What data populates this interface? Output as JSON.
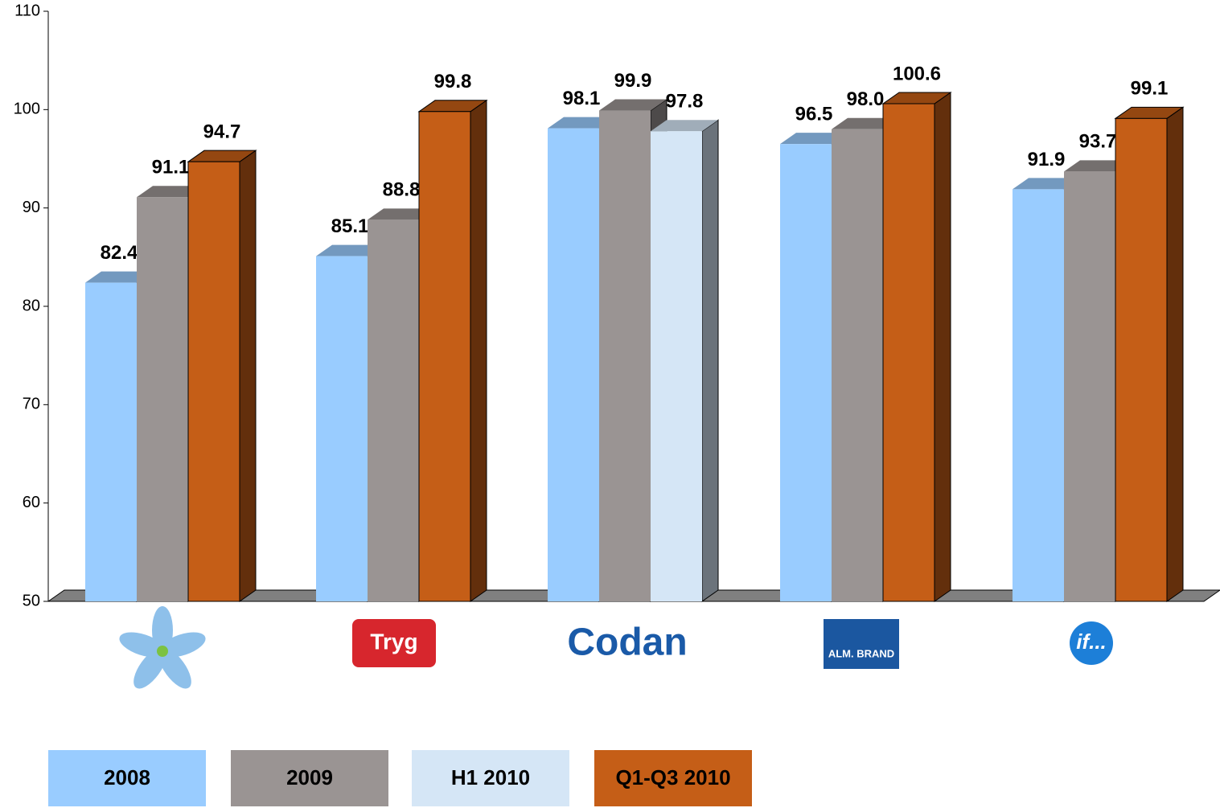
{
  "chart_data": {
    "type": "bar3d",
    "categories": [
      null,
      "Tryg",
      "Codan",
      "ALM. BRAND",
      "if..."
    ],
    "series": [
      {
        "name": "2008",
        "color": "#99ccff",
        "values": [
          82.4,
          85.1,
          98.1,
          96.5,
          91.9
        ]
      },
      {
        "name": "2009",
        "color": "#9a9493",
        "values": [
          91.1,
          88.8,
          99.9,
          98.0,
          93.7
        ],
        "value_labels": [
          "91.1",
          "88.8",
          "99.9",
          "98.0",
          "93.7"
        ]
      },
      {
        "name": "H1 2010",
        "color": "#d5e6f6",
        "values": [
          null,
          null,
          97.8,
          null,
          null
        ]
      },
      {
        "name": "Q1-Q3 2010",
        "color": "#c55e17",
        "values": [
          94.7,
          99.8,
          null,
          100.6,
          99.1
        ]
      }
    ],
    "ylim": [
      50,
      110
    ],
    "yticks": [
      50,
      60,
      70,
      80,
      90,
      100,
      110
    ]
  }
}
